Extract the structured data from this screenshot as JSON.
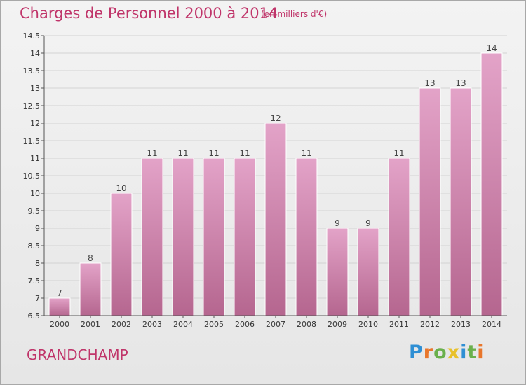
{
  "header": {
    "title": "Charges de Personnel 2000 à 2014",
    "subtitle": "(en milliers d'€)"
  },
  "footer": {
    "location": "GRANDCHAMP",
    "logo_text": "Proxiti",
    "logo_letters": [
      {
        "ch": "P",
        "color": "#2f8fd4"
      },
      {
        "ch": "r",
        "color": "#e8762b"
      },
      {
        "ch": "o",
        "color": "#6ab04c"
      },
      {
        "ch": "x",
        "color": "#e8c12b"
      },
      {
        "ch": "i",
        "color": "#2f8fd4"
      },
      {
        "ch": "t",
        "color": "#6ab04c"
      },
      {
        "ch": "i",
        "color": "#e8762b"
      }
    ]
  },
  "colors": {
    "bar_top": "#e3a3c8",
    "bar_bottom": "#b5668f",
    "accent": "#c0356a",
    "grid": "#d3d3d3",
    "axis": "#555555"
  },
  "chart_data": {
    "type": "bar",
    "categories": [
      "2000",
      "2001",
      "2002",
      "2003",
      "2004",
      "2005",
      "2006",
      "2007",
      "2008",
      "2009",
      "2010",
      "2011",
      "2012",
      "2013",
      "2014"
    ],
    "values": [
      7,
      8,
      10,
      11,
      11,
      11,
      11,
      12,
      11,
      9,
      9,
      11,
      13,
      13,
      14
    ],
    "value_labels": [
      "7",
      "8",
      "10",
      "11",
      "11",
      "11",
      "11",
      "12",
      "11",
      "9",
      "9",
      "11",
      "13",
      "13",
      "14"
    ],
    "ylim": [
      6.5,
      14.5
    ],
    "yticks": [
      6.5,
      7,
      7.5,
      8,
      8.5,
      9,
      9.5,
      10,
      10.5,
      11,
      11.5,
      12,
      12.5,
      13,
      13.5,
      14,
      14.5
    ],
    "ytick_labels": [
      "6.5",
      "7",
      "7.5",
      "8",
      "8.5",
      "9",
      "9.5",
      "10",
      "10.5",
      "11",
      "11.5",
      "12",
      "12.5",
      "13",
      "13.5",
      "14",
      "14.5"
    ],
    "grid": true,
    "xlabel": "",
    "ylabel": ""
  }
}
